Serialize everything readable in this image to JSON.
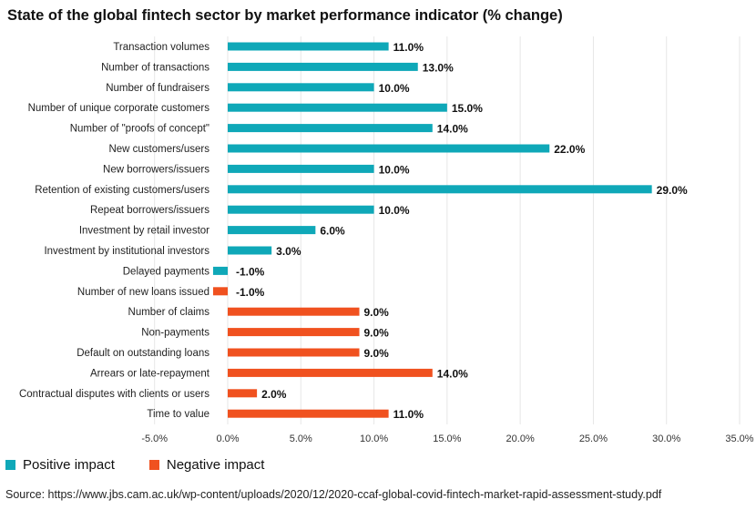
{
  "chart_data": {
    "type": "bar",
    "orientation": "horizontal",
    "title": "State of the global fintech sector by market performance indicator (% change)",
    "xlim": [
      -5,
      35
    ],
    "xticks": [
      -5,
      0,
      5,
      10,
      15,
      20,
      25,
      30,
      35
    ],
    "xtick_labels": [
      "-5.0%",
      "0.0%",
      "5.0%",
      "10.0%",
      "15.0%",
      "20.0%",
      "25.0%",
      "30.0%",
      "35.0%"
    ],
    "grid": "vertical",
    "legend_position": "bottom-left",
    "colors": {
      "positive": "#0fa8b8",
      "negative": "#f0511f"
    },
    "categories": [
      "Transaction volumes",
      "Number of transactions",
      "Number of fundraisers",
      "Number of unique corporate customers",
      "Number of \"proofs of concept\"",
      "New customers/users",
      "New borrowers/issuers",
      "Retention of existing customers/users",
      "Repeat borrowers/issuers",
      "Investment by retail investor",
      "Investment by institutional investors",
      "Delayed payments",
      "Number of new loans issued",
      "Number of claims",
      "Non-payments",
      "Default on outstanding loans",
      "Arrears or late-repayment",
      "Contractual disputes with clients or users",
      "Time to value"
    ],
    "values": [
      11,
      13,
      10,
      15,
      14,
      22,
      10,
      29,
      10,
      6,
      3,
      -1,
      -1,
      9,
      9,
      9,
      14,
      2,
      11
    ],
    "value_labels": [
      "11.0%",
      "13.0%",
      "10.0%",
      "15.0%",
      "14.0%",
      "22.0%",
      "10.0%",
      "29.0%",
      "10.0%",
      "6.0%",
      "3.0%",
      "-1.0%",
      "-1.0%",
      "9.0%",
      "9.0%",
      "9.0%",
      "14.0%",
      "2.0%",
      "11.0%"
    ],
    "impact": [
      "positive",
      "positive",
      "positive",
      "positive",
      "positive",
      "positive",
      "positive",
      "positive",
      "positive",
      "positive",
      "positive",
      "positive",
      "negative",
      "negative",
      "negative",
      "negative",
      "negative",
      "negative",
      "negative"
    ],
    "series": [
      {
        "name": "Positive impact",
        "color": "#0fa8b8"
      },
      {
        "name": "Negative impact",
        "color": "#f0511f"
      }
    ]
  },
  "source": "Source: https://www.jbs.cam.ac.uk/wp-content/uploads/2020/12/2020-ccaf-global-covid-fintech-market-rapid-assessment-study.pdf"
}
